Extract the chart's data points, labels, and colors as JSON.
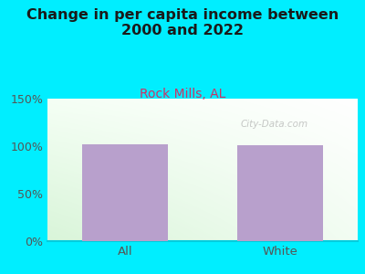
{
  "title": "Change in per capita income between\n2000 and 2022",
  "subtitle": "Rock Mills, AL",
  "categories": [
    "All",
    "White"
  ],
  "values": [
    102,
    101
  ],
  "bar_color": "#b8a0cc",
  "title_fontsize": 11.5,
  "subtitle_fontsize": 10,
  "subtitle_color": "#cc3366",
  "tick_label_color": "#555555",
  "bg_outer": "#00eeff",
  "ylim": [
    0,
    150
  ],
  "yticks": [
    0,
    50,
    100,
    150
  ],
  "ytick_labels": [
    "0%",
    "50%",
    "100%",
    "150%"
  ],
  "watermark": "City-Data.com",
  "plot_bg_topleft": "#e8f5e8",
  "plot_bg_topright": "#f0f8f8",
  "plot_bg_bottomleft": "#d8f0d8",
  "plot_bg_bottomright": "#e8f8f0"
}
